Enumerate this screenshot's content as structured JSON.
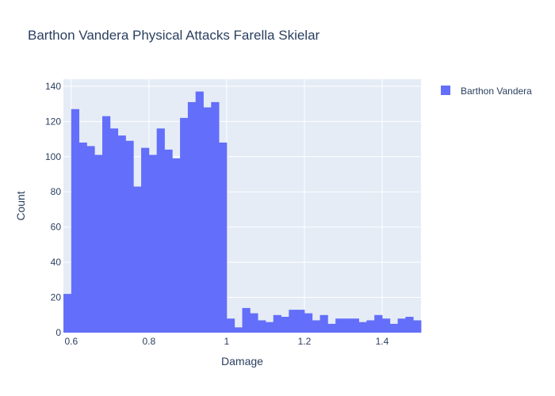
{
  "chart_data": {
    "type": "bar",
    "title": "Barthon Vandera Physical Attacks Farella Skielar",
    "xlabel": "Damage",
    "ylabel": "Count",
    "bin_start": 0.58,
    "bin_width": 0.02,
    "xlim": [
      0.58,
      1.5
    ],
    "ylim": [
      0,
      144
    ],
    "xticks": [
      0.6,
      0.8,
      1,
      1.2,
      1.4
    ],
    "xtick_labels": [
      "0.6",
      "0.8",
      "1",
      "1.2",
      "1.4"
    ],
    "yticks": [
      0,
      20,
      40,
      60,
      80,
      100,
      120,
      140
    ],
    "ytick_labels": [
      "0",
      "20",
      "40",
      "60",
      "80",
      "100",
      "120",
      "140"
    ],
    "grid": true,
    "legend_position": "top-right",
    "series": [
      {
        "name": "Barthon Vandera",
        "color": "#636efa",
        "values": [
          22,
          127,
          108,
          106,
          101,
          123,
          116,
          112,
          109,
          83,
          105,
          101,
          116,
          104,
          99,
          122,
          131,
          137,
          128,
          131,
          108,
          8,
          3,
          14,
          11,
          7,
          6,
          10,
          9,
          13,
          13,
          11,
          7,
          10,
          5,
          8,
          8,
          8,
          6,
          7,
          10,
          8,
          5,
          8,
          9,
          7
        ]
      }
    ]
  }
}
